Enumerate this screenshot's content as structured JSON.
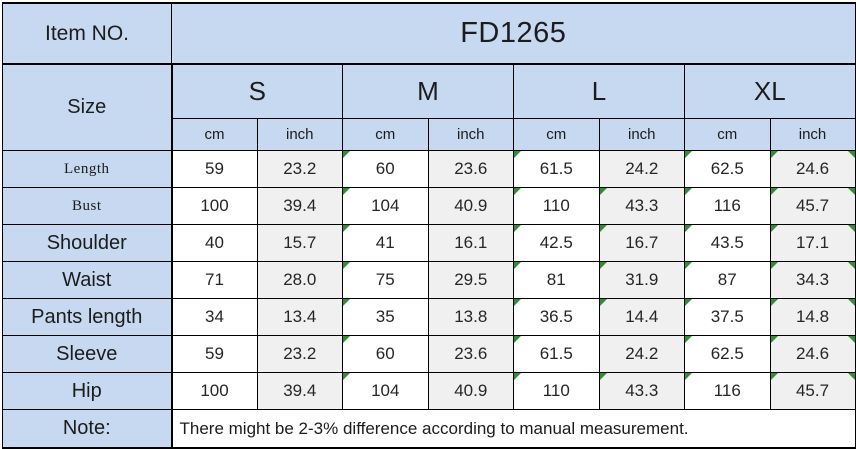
{
  "chart_data": {
    "type": "table",
    "title": "Garment size chart for item FD1265",
    "item": {
      "label": "Item NO.",
      "value": "FD1265"
    },
    "size_header": {
      "label": "Size",
      "sizes": [
        "S",
        "M",
        "L",
        "XL"
      ],
      "units": [
        "cm",
        "inch"
      ]
    },
    "column_order": [
      "S cm",
      "S inch",
      "M cm",
      "M inch",
      "L cm",
      "L inch",
      "XL cm",
      "XL inch"
    ],
    "rows": [
      {
        "label": "Length",
        "values": [
          "59",
          "23.2",
          "60",
          "23.6",
          "61.5",
          "24.2",
          "62.5",
          "24.6"
        ]
      },
      {
        "label": "Bust",
        "values": [
          "100",
          "39.4",
          "104",
          "40.9",
          "110",
          "43.3",
          "116",
          "45.7"
        ]
      },
      {
        "label": "Shoulder",
        "values": [
          "40",
          "15.7",
          "41",
          "16.1",
          "42.5",
          "16.7",
          "43.5",
          "17.1"
        ]
      },
      {
        "label": "Waist",
        "values": [
          "71",
          "28.0",
          "75",
          "29.5",
          "81",
          "31.9",
          "87",
          "34.3"
        ]
      },
      {
        "label": "Pants length",
        "values": [
          "34",
          "13.4",
          "35",
          "13.8",
          "36.5",
          "14.4",
          "37.5",
          "14.8"
        ]
      },
      {
        "label": "Sleeve",
        "values": [
          "59",
          "23.2",
          "60",
          "23.6",
          "61.5",
          "24.2",
          "62.5",
          "24.6"
        ]
      },
      {
        "label": "Hip",
        "values": [
          "100",
          "39.4",
          "104",
          "40.9",
          "110",
          "43.3",
          "116",
          "45.7"
        ]
      }
    ],
    "note": {
      "label": "Note:",
      "text": "There might be 2-3% difference according to manual measurement."
    }
  },
  "flags": {
    "description": "green triangle cell indicators (row-index, value-column-index)",
    "cells": [
      [
        0,
        2
      ],
      [
        0,
        4
      ],
      [
        0,
        6
      ],
      [
        0,
        7
      ],
      [
        1,
        2
      ],
      [
        1,
        4
      ],
      [
        1,
        5
      ],
      [
        1,
        6
      ],
      [
        1,
        7
      ],
      [
        2,
        2
      ],
      [
        2,
        4
      ],
      [
        2,
        5
      ],
      [
        2,
        6
      ],
      [
        2,
        7
      ],
      [
        3,
        2
      ],
      [
        3,
        4
      ],
      [
        3,
        5
      ],
      [
        3,
        6
      ],
      [
        3,
        7
      ],
      [
        4,
        2
      ],
      [
        4,
        4
      ],
      [
        4,
        5
      ],
      [
        4,
        6
      ],
      [
        4,
        7
      ],
      [
        5,
        2
      ],
      [
        5,
        4
      ],
      [
        5,
        6
      ],
      [
        5,
        7
      ],
      [
        6,
        2
      ],
      [
        6,
        4
      ],
      [
        6,
        5
      ],
      [
        6,
        6
      ],
      [
        6,
        7
      ]
    ],
    "right_edge_rows": [
      0,
      1,
      2,
      3,
      4,
      5,
      6
    ]
  },
  "colors": {
    "header_blue": "#c6d9f1",
    "inch_column_gray": "#f0f0f0",
    "flag_green": "#2e8f35",
    "border": "#000000"
  }
}
